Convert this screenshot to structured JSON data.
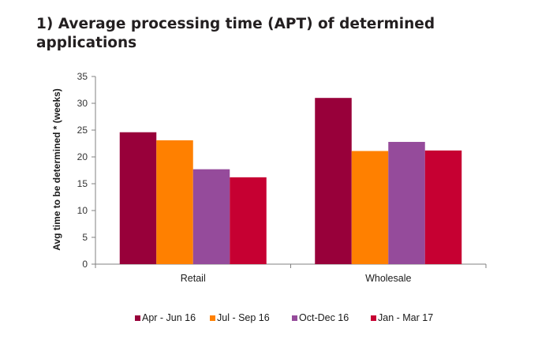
{
  "chart_data": {
    "type": "bar",
    "title": "1) Average processing time (APT) of determined applications",
    "xlabel": "",
    "ylabel": "Avg time to be determined * (weeks)",
    "categories": [
      "Retail",
      "Wholesale"
    ],
    "ylim": [
      0,
      35
    ],
    "yticks": [
      0,
      5,
      10,
      15,
      20,
      25,
      30,
      35
    ],
    "grid": false,
    "legend_position": "bottom",
    "series": [
      {
        "name": "Apr - Jun 16",
        "color": "#98003a",
        "values": [
          24.6,
          31.0
        ]
      },
      {
        "name": "Jul - Sep 16",
        "color": "#ff8000",
        "values": [
          23.1,
          21.1
        ]
      },
      {
        "name": "Oct-Dec 16",
        "color": "#954b9b",
        "values": [
          17.7,
          22.8
        ]
      },
      {
        "name": "Jan - Mar 17",
        "color": "#c60032",
        "values": [
          16.2,
          21.2
        ]
      }
    ]
  }
}
